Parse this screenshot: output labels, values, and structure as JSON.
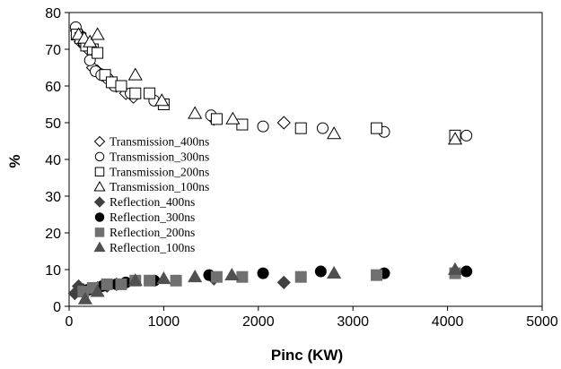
{
  "chart_data": {
    "type": "scatter",
    "title": "",
    "xlabel": "Pinc (KW)",
    "ylabel": "%",
    "xlim": [
      0,
      5000
    ],
    "ylim": [
      0,
      80
    ],
    "x_ticks": [
      0,
      1000,
      2000,
      3000,
      4000,
      5000
    ],
    "y_ticks": [
      0,
      10,
      20,
      30,
      40,
      50,
      60,
      70,
      80
    ],
    "grid": false,
    "legend_placement": "middle-left",
    "series": [
      {
        "name": "Transmission_400ns",
        "marker": "diamond",
        "filled": false,
        "color": "#000000",
        "x": [
          80,
          120,
          160,
          200,
          250,
          300,
          350,
          420,
          500,
          600,
          680,
          1530,
          2270
        ],
        "y": [
          75,
          72,
          71,
          70,
          65,
          64,
          63,
          62,
          60,
          58,
          57,
          51,
          50
        ]
      },
      {
        "name": "Transmission_300ns",
        "marker": "circle",
        "filled": false,
        "color": "#000000",
        "x": [
          70,
          100,
          150,
          220,
          280,
          340,
          410,
          480,
          550,
          650,
          900,
          1500,
          2050,
          2680,
          3330,
          4200
        ],
        "y": [
          76,
          74,
          72,
          67,
          64,
          63,
          62,
          60,
          60,
          58,
          56,
          52,
          49,
          48.5,
          47.5,
          46.5
        ]
      },
      {
        "name": "Transmission_200ns",
        "marker": "square",
        "filled": false,
        "color": "#000000",
        "x": [
          80,
          120,
          180,
          250,
          300,
          380,
          450,
          550,
          700,
          850,
          1000,
          1560,
          1830,
          2450,
          3250,
          4080
        ],
        "y": [
          74,
          73,
          71,
          70,
          69,
          63,
          61,
          60,
          58,
          58,
          55,
          51,
          49.5,
          48.5,
          48.5,
          46.5
        ]
      },
      {
        "name": "Transmission_100ns",
        "marker": "triangle",
        "filled": false,
        "color": "#000000",
        "x": [
          100,
          160,
          220,
          300,
          700,
          980,
          1330,
          1730,
          2800,
          4080
        ],
        "y": [
          74,
          73,
          72,
          74,
          63,
          56,
          52.5,
          51,
          47,
          45.5
        ]
      },
      {
        "name": "Reflection_400ns",
        "marker": "diamond",
        "filled": true,
        "color": "#404040",
        "x": [
          60,
          100,
          150,
          200,
          300,
          400,
          500,
          1530,
          2270
        ],
        "y": [
          3.5,
          5.5,
          4.5,
          4.5,
          5,
          5.5,
          6,
          7.5,
          6.5
        ]
      },
      {
        "name": "Reflection_300ns",
        "marker": "circle",
        "filled": true,
        "color": "#000000",
        "x": [
          200,
          350,
          500,
          600,
          900,
          1480,
          2050,
          2660,
          3330,
          4200
        ],
        "y": [
          4.5,
          5.5,
          6,
          6.5,
          7,
          8.5,
          9,
          9.5,
          9,
          9.5
        ]
      },
      {
        "name": "Reflection_200ns",
        "marker": "square",
        "filled": true,
        "color": "#707070",
        "x": [
          150,
          250,
          400,
          550,
          700,
          850,
          1130,
          1560,
          1830,
          2450,
          3250,
          4080
        ],
        "y": [
          4,
          5,
          6,
          6,
          7,
          7,
          7,
          8,
          8,
          8,
          8.5,
          9
        ]
      },
      {
        "name": "Reflection_100ns",
        "marker": "triangle",
        "filled": true,
        "color": "#505050",
        "x": [
          170,
          300,
          700,
          1000,
          1330,
          1720,
          2800,
          4080
        ],
        "y": [
          2,
          4,
          7,
          7.5,
          8,
          8.5,
          9,
          10
        ]
      }
    ]
  }
}
